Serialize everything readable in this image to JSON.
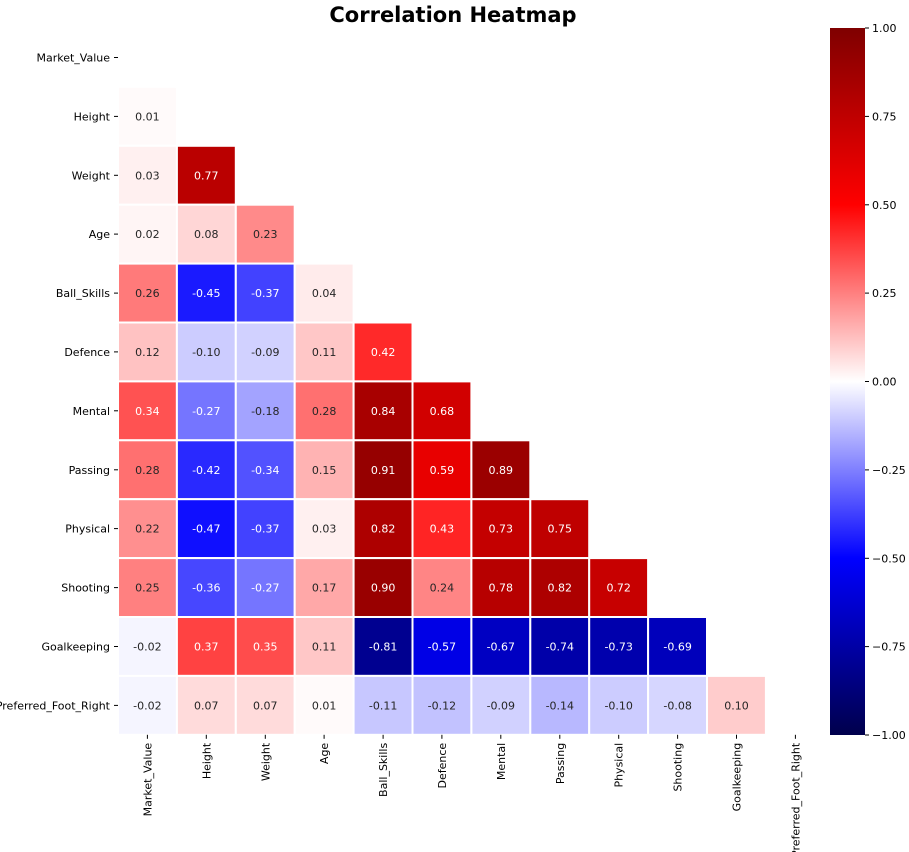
{
  "chart_data": {
    "type": "heatmap",
    "title": "Correlation Heatmap",
    "xlabel": "",
    "ylabel": "",
    "variables": [
      "Market_Value",
      "Height",
      "Weight",
      "Age",
      "Ball_Skills",
      "Defence",
      "Mental",
      "Passing",
      "Physical",
      "Shooting",
      "Goalkeeping",
      "Preferred_Foot_Right"
    ],
    "mask": "upper-triangle-including-diagonal",
    "values": [
      [
        null,
        null,
        null,
        null,
        null,
        null,
        null,
        null,
        null,
        null,
        null,
        null
      ],
      [
        0.01,
        null,
        null,
        null,
        null,
        null,
        null,
        null,
        null,
        null,
        null,
        null
      ],
      [
        0.03,
        0.77,
        null,
        null,
        null,
        null,
        null,
        null,
        null,
        null,
        null,
        null
      ],
      [
        0.02,
        0.08,
        0.23,
        null,
        null,
        null,
        null,
        null,
        null,
        null,
        null,
        null
      ],
      [
        0.26,
        -0.45,
        -0.37,
        0.04,
        null,
        null,
        null,
        null,
        null,
        null,
        null,
        null
      ],
      [
        0.12,
        -0.1,
        -0.09,
        0.11,
        0.42,
        null,
        null,
        null,
        null,
        null,
        null,
        null
      ],
      [
        0.34,
        -0.27,
        -0.18,
        0.28,
        0.84,
        0.68,
        null,
        null,
        null,
        null,
        null,
        null
      ],
      [
        0.28,
        -0.42,
        -0.34,
        0.15,
        0.91,
        0.59,
        0.89,
        null,
        null,
        null,
        null,
        null
      ],
      [
        0.22,
        -0.47,
        -0.37,
        0.03,
        0.82,
        0.43,
        0.73,
        0.75,
        null,
        null,
        null,
        null
      ],
      [
        0.25,
        -0.36,
        -0.27,
        0.17,
        0.9,
        0.24,
        0.78,
        0.82,
        0.72,
        null,
        null,
        null
      ],
      [
        -0.02,
        0.37,
        0.35,
        0.11,
        -0.81,
        -0.57,
        -0.67,
        -0.74,
        -0.73,
        -0.69,
        null,
        null
      ],
      [
        -0.02,
        0.07,
        0.07,
        0.01,
        -0.11,
        -0.12,
        -0.09,
        -0.14,
        -0.1,
        -0.08,
        0.1,
        null
      ]
    ],
    "colorscale": "seismic",
    "vmin": -1.0,
    "vmax": 1.0,
    "colorbar_ticks": [
      "1.00",
      "0.75",
      "0.50",
      "0.25",
      "0.00",
      "−0.25",
      "−0.50",
      "−0.75",
      "−1.00"
    ],
    "colorbar_tick_values": [
      1.0,
      0.75,
      0.5,
      0.25,
      0.0,
      -0.25,
      -0.5,
      -0.75,
      -1.0
    ],
    "grid": false,
    "legend": "colorbar-right"
  }
}
